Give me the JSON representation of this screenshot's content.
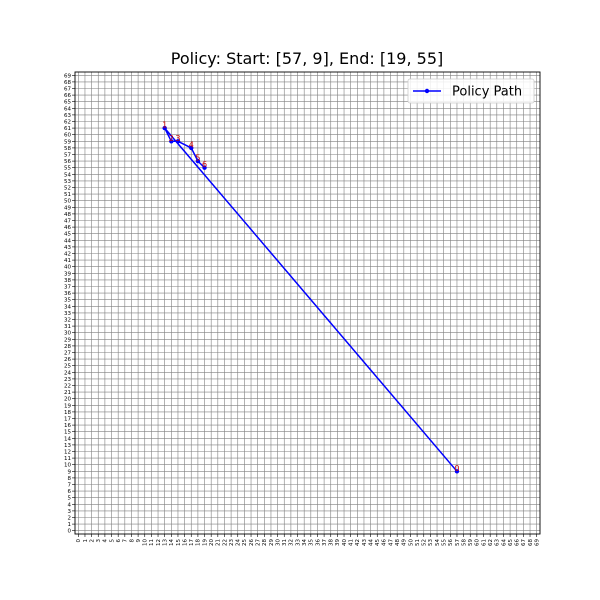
{
  "chart_data": {
    "type": "line",
    "title": "Policy: Start: [57, 9], End: [19, 55]",
    "xlabel": "",
    "ylabel": "",
    "xlim": [
      -0.5,
      69.5
    ],
    "ylim": [
      -0.5,
      69.5
    ],
    "x_ticks": [
      0,
      1,
      2,
      3,
      4,
      5,
      6,
      7,
      8,
      9,
      10,
      11,
      12,
      13,
      14,
      15,
      16,
      17,
      18,
      19,
      20,
      21,
      22,
      23,
      24,
      25,
      26,
      27,
      28,
      29,
      30,
      31,
      32,
      33,
      34,
      35,
      36,
      37,
      38,
      39,
      40,
      41,
      42,
      43,
      44,
      45,
      46,
      47,
      48,
      49,
      50,
      51,
      52,
      53,
      54,
      55,
      56,
      57,
      58,
      59,
      60,
      61,
      62,
      63,
      64,
      65,
      66,
      67,
      68,
      69
    ],
    "y_ticks": [
      0,
      1,
      2,
      3,
      4,
      5,
      6,
      7,
      8,
      9,
      10,
      11,
      12,
      13,
      14,
      15,
      16,
      17,
      18,
      19,
      20,
      21,
      22,
      23,
      24,
      25,
      26,
      27,
      28,
      29,
      30,
      31,
      32,
      33,
      34,
      35,
      36,
      37,
      38,
      39,
      40,
      41,
      42,
      43,
      44,
      45,
      46,
      47,
      48,
      49,
      50,
      51,
      52,
      53,
      54,
      55,
      56,
      57,
      58,
      59,
      60,
      61,
      62,
      63,
      64,
      65,
      66,
      67,
      68,
      69
    ],
    "grid": true,
    "legend_position": "top-right",
    "series": [
      {
        "name": "Policy Path",
        "color": "#0000ff",
        "marker": "circle",
        "x": [
          57,
          13,
          14,
          15,
          17,
          18,
          19
        ],
        "y": [
          9,
          61,
          59,
          59,
          58,
          56,
          55
        ]
      }
    ],
    "point_labels": [
      {
        "text": "0",
        "x": 57,
        "y": 9
      },
      {
        "text": "1",
        "x": 13,
        "y": 61
      },
      {
        "text": "2",
        "x": 14,
        "y": 59
      },
      {
        "text": "3",
        "x": 15,
        "y": 59
      },
      {
        "text": "4",
        "x": 17,
        "y": 58
      },
      {
        "text": "5",
        "x": 18,
        "y": 56
      },
      {
        "text": "6",
        "x": 19,
        "y": 55
      }
    ],
    "label_color": "#cc0000",
    "grid_color": "#808080"
  }
}
